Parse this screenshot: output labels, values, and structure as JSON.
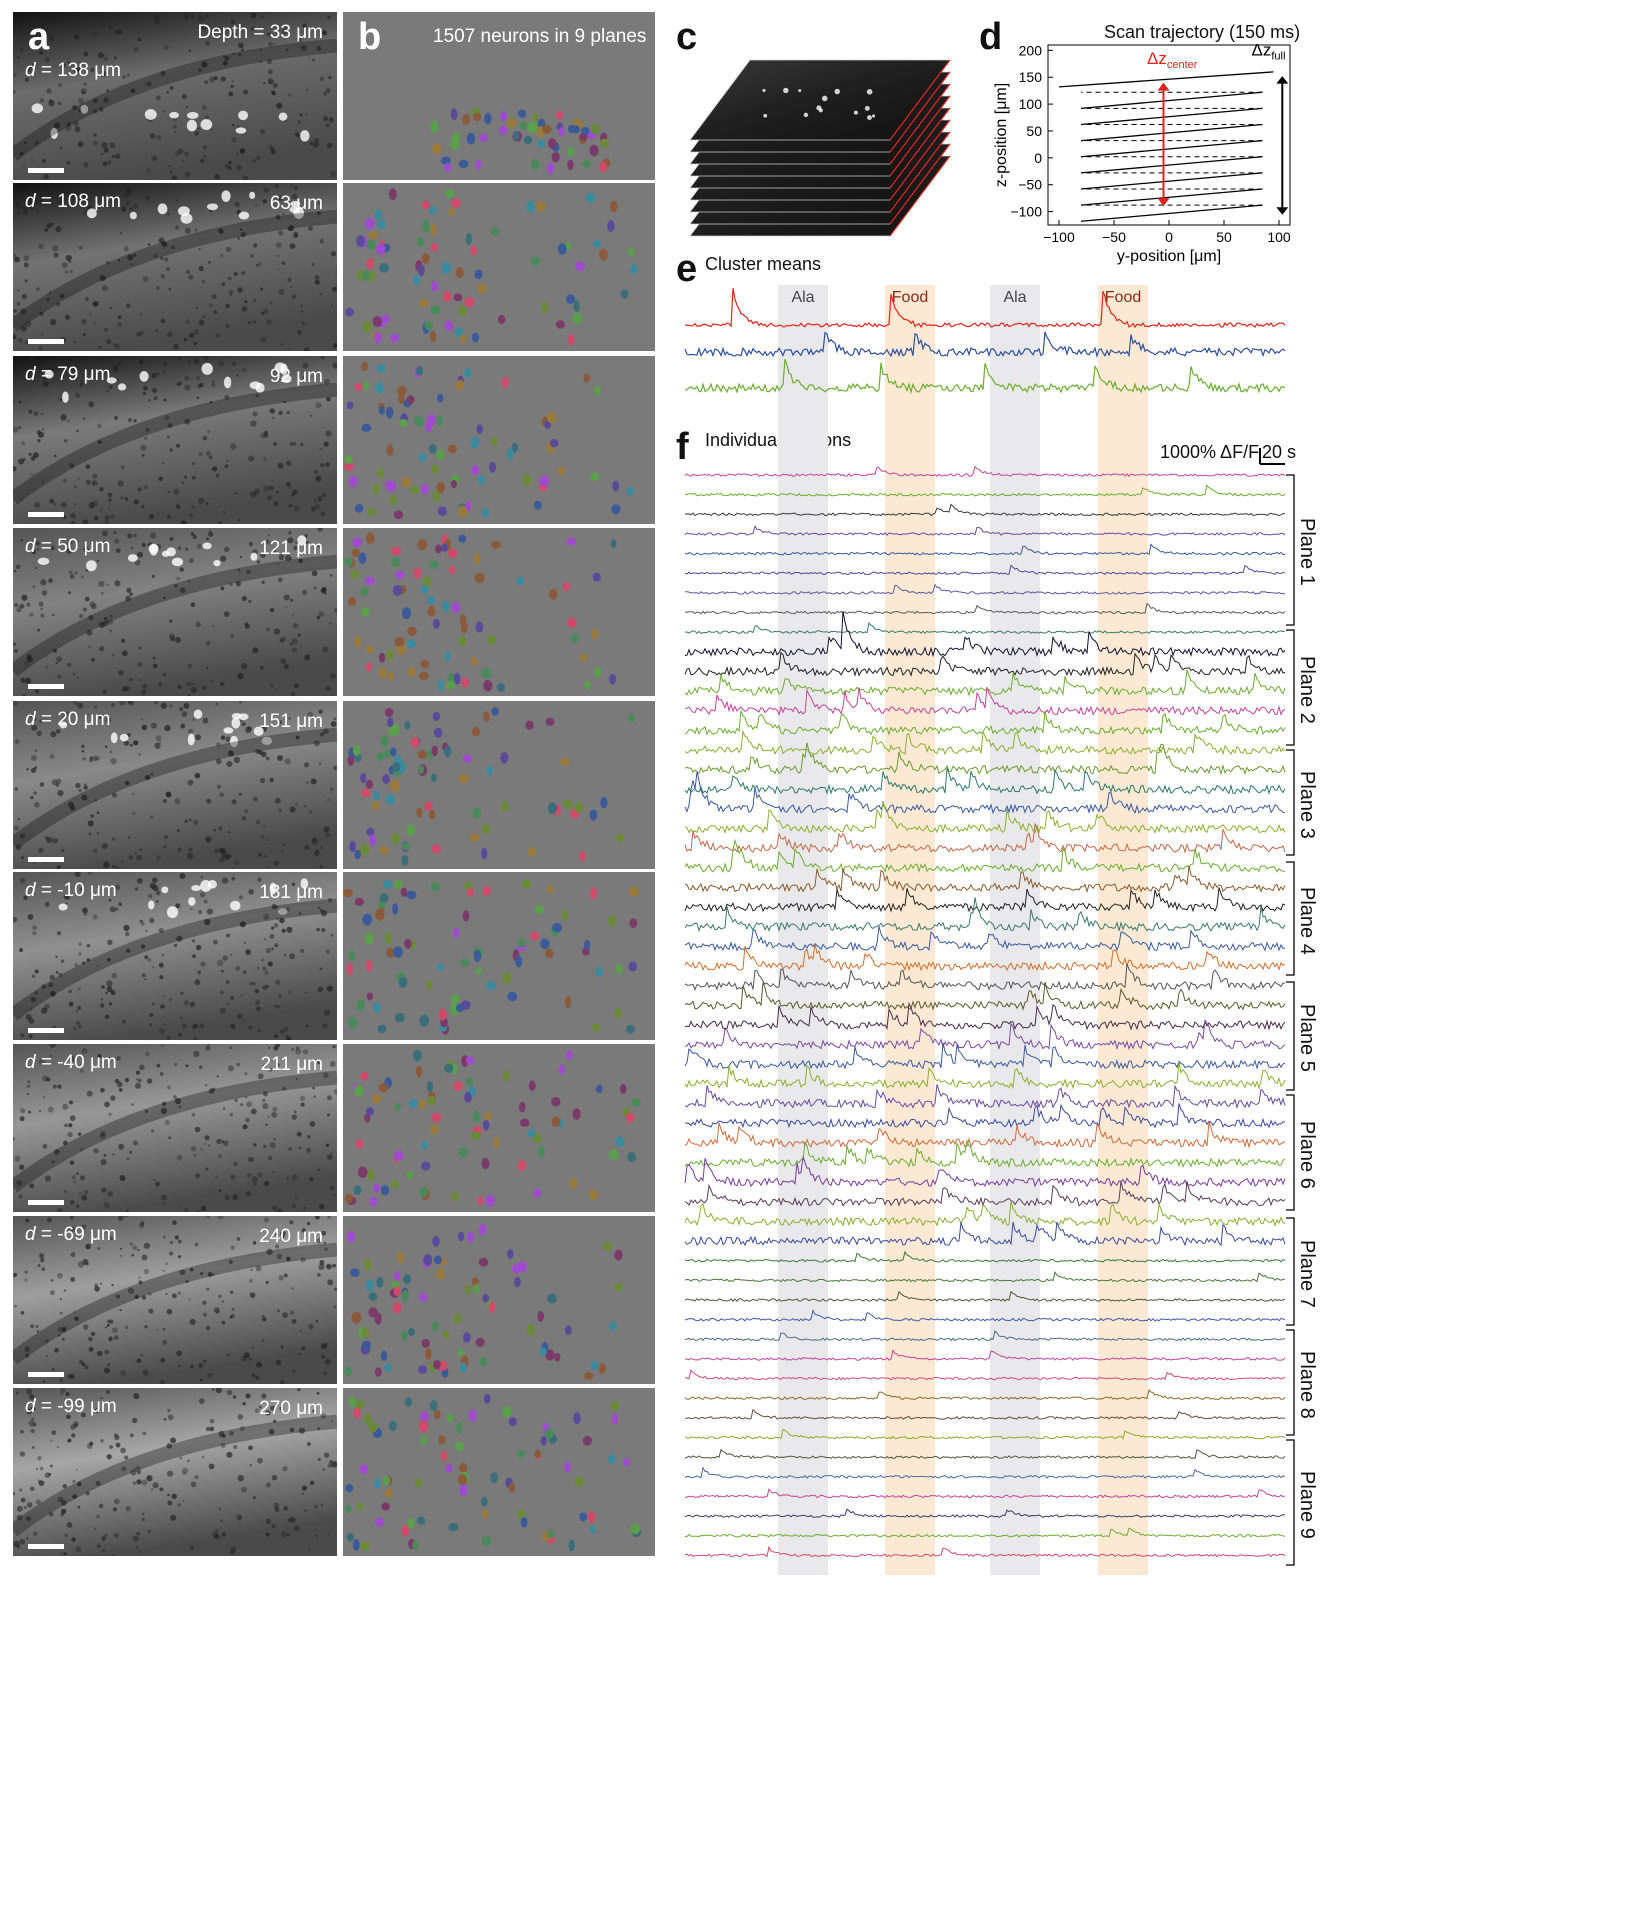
{
  "panels": {
    "a": {
      "letter": "a",
      "header": "Depth = 33 μm",
      "rows": [
        {
          "d_prefix": "d",
          "d_text": " = 138 μm",
          "depth": ""
        },
        {
          "d_prefix": "d",
          "d_text": " = 108 μm",
          "depth": "63 μm"
        },
        {
          "d_prefix": "d",
          "d_text": " = 79 μm",
          "depth": "92 μm"
        },
        {
          "d_prefix": "d",
          "d_text": " = 50 μm",
          "depth": "121 μm"
        },
        {
          "d_prefix": "d",
          "d_text": " = 20 μm",
          "depth": "151 μm"
        },
        {
          "d_prefix": "d",
          "d_text": " = -10 μm",
          "depth": "181 μm"
        },
        {
          "d_prefix": "d",
          "d_text": " = -40 μm",
          "depth": "211 μm"
        },
        {
          "d_prefix": "d",
          "d_text": " = -69 μm",
          "depth": "240 μm"
        },
        {
          "d_prefix": "d",
          "d_text": " = -99 μm",
          "depth": "270 μm"
        }
      ]
    },
    "b": {
      "letter": "b",
      "title": "1507 neurons in 9 planes"
    },
    "c": {
      "letter": "c"
    },
    "d": {
      "letter": "d",
      "title": "Scan trajectory (150 ms)",
      "dz_center": "Δz",
      "dz_center_sub": "center",
      "dz_full": "Δz",
      "dz_full_sub": "full",
      "xlabel": "y-position [μm]",
      "ylabel": "z-position [μm]",
      "xticks": [
        "−100",
        "−50",
        "0",
        "50",
        "100"
      ],
      "yticks": [
        "200",
        "150",
        "100",
        "50",
        "0",
        "−50",
        "−100"
      ]
    },
    "e": {
      "letter": "e",
      "title": "Cluster means",
      "bands": [
        "Ala",
        "Food",
        "Ala",
        "Food"
      ]
    },
    "f": {
      "letter": "f",
      "title": "Individual neurons",
      "scale_y": "1000% ΔF/F",
      "scale_x": "20 s",
      "planes": [
        "Plane 1",
        "Plane 2",
        "Plane 3",
        "Plane 4",
        "Plane 5",
        "Plane 6",
        "Plane 7",
        "Plane 8",
        "Plane 9"
      ]
    }
  },
  "colors": {
    "ala_band": "#e9e9ec",
    "food_band": "#fbe9d3",
    "cluster_red": "#e2231a",
    "cluster_blue": "#2e4f9e",
    "cluster_green": "#6aae2e",
    "dz_center": "#e2231a",
    "seg_bg": "#7a7a7a"
  },
  "chart_data": [
    {
      "type": "line",
      "title": "Scan trajectory (150 ms)",
      "xlabel": "y-position [μm]",
      "ylabel": "z-position [μm]",
      "xlim": [
        -110,
        110
      ],
      "ylim": [
        -125,
        210
      ],
      "series": [
        {
          "values_desc": "solid sweep lines",
          "lines": [
            {
              "x": [
                -80,
                85
              ],
              "y": [
                -118,
                -88
              ]
            },
            {
              "x": [
                -80,
                85
              ],
              "y": [
                -88,
                -58
              ]
            },
            {
              "x": [
                -80,
                85
              ],
              "y": [
                -58,
                -28
              ]
            },
            {
              "x": [
                -80,
                85
              ],
              "y": [
                -28,
                2
              ]
            },
            {
              "x": [
                -80,
                85
              ],
              "y": [
                2,
                32
              ]
            },
            {
              "x": [
                -80,
                85
              ],
              "y": [
                32,
                62
              ]
            },
            {
              "x": [
                -80,
                85
              ],
              "y": [
                62,
                92
              ]
            },
            {
              "x": [
                -80,
                85
              ],
              "y": [
                92,
                122
              ]
            },
            {
              "x": [
                -100,
                95
              ],
              "y": [
                132,
                160
              ]
            }
          ]
        }
      ]
    }
  ]
}
